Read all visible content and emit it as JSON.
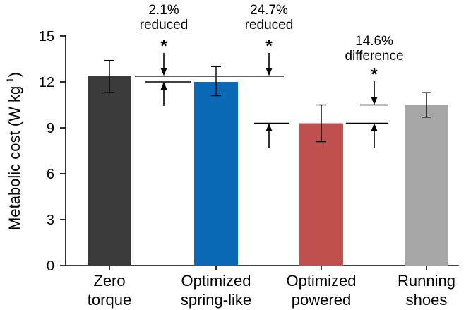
{
  "chart_data": {
    "type": "bar",
    "title": "",
    "xlabel": "",
    "ylabel": "Metabolic cost (W kg",
    "ylabel_sup": "-1",
    "ylabel_close": ")",
    "ylim": [
      0,
      15
    ],
    "yticks": [
      "0",
      "3",
      "6",
      "9",
      "12",
      "15"
    ],
    "grid": false,
    "categories": [
      {
        "line1": "Zero",
        "line2": "torque"
      },
      {
        "line1": "Optimized",
        "line2": "spring-like"
      },
      {
        "line1": "Optimized",
        "line2": "powered"
      },
      {
        "line1": "Running",
        "line2": "shoes"
      }
    ],
    "values": [
      12.4,
      12.0,
      9.3,
      10.5
    ],
    "error_low": [
      11.3,
      11.1,
      8.1,
      9.7
    ],
    "error_high": [
      13.4,
      13.0,
      10.5,
      11.3
    ],
    "colors": [
      "#3b3b3b",
      "#0a68b5",
      "#c0504d",
      "#a6a6a6"
    ],
    "annotations": [
      {
        "line1": "2.1%",
        "line2": "reduced",
        "star": "*"
      },
      {
        "line1": "24.7%",
        "line2": "reduced",
        "star": "*"
      },
      {
        "line1": "14.6%",
        "line2": "difference",
        "star": "*"
      }
    ]
  }
}
